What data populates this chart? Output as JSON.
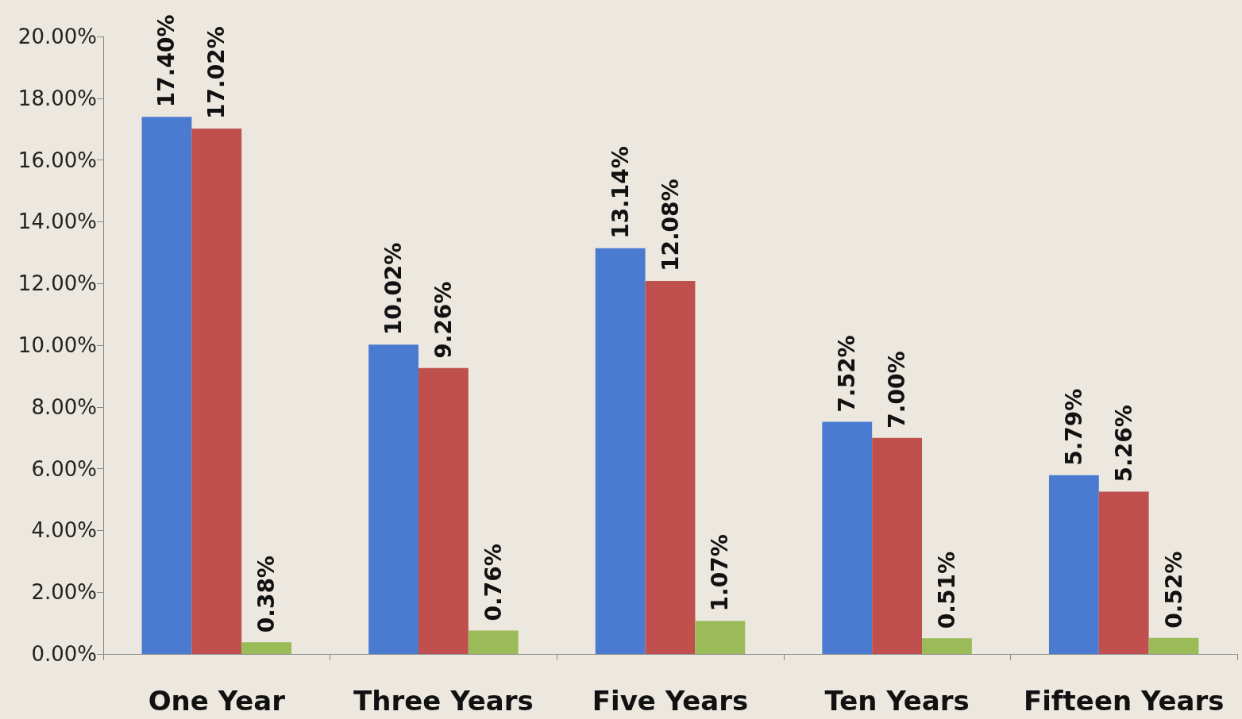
{
  "chart_data": {
    "type": "bar",
    "categories": [
      "One Year",
      "Three Years",
      "Five Years",
      "Ten Years",
      "Fifteen Years"
    ],
    "series": [
      {
        "color": "#4a7bd0",
        "values": [
          17.4,
          10.02,
          13.14,
          7.52,
          5.79
        ],
        "value_labels": [
          "17.40%",
          "10.02%",
          "13.14%",
          "7.52%",
          "5.79%"
        ]
      },
      {
        "color": "#c0504d",
        "values": [
          17.02,
          9.26,
          12.08,
          7.0,
          5.26
        ],
        "value_labels": [
          "17.02%",
          "9.26%",
          "12.08%",
          "7.00%",
          "5.26%"
        ]
      },
      {
        "color": "#9bbb59",
        "values": [
          0.38,
          0.76,
          1.07,
          0.51,
          0.52
        ],
        "value_labels": [
          "0.38%",
          "0.76%",
          "1.07%",
          "0.51%",
          "0.52%"
        ]
      }
    ],
    "ylim": [
      0,
      20
    ],
    "yticks": [
      {
        "value": 0,
        "label": "0.00%"
      },
      {
        "value": 2,
        "label": "2.00%"
      },
      {
        "value": 4,
        "label": "4.00%"
      },
      {
        "value": 6,
        "label": "6.00%"
      },
      {
        "value": 8,
        "label": "8.00%"
      },
      {
        "value": 10,
        "label": "10.00%"
      },
      {
        "value": 12,
        "label": "12.00%"
      },
      {
        "value": 14,
        "label": "14.00%"
      },
      {
        "value": 16,
        "label": "16.00%"
      },
      {
        "value": 18,
        "label": "18.00%"
      },
      {
        "value": 20,
        "label": "20.00%"
      }
    ],
    "grid": false
  }
}
